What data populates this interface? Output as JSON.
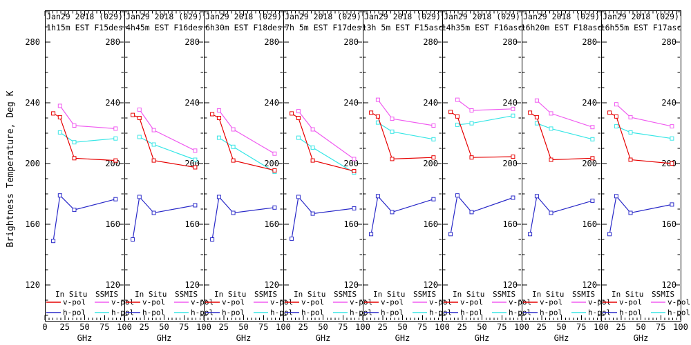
{
  "chart_data": {
    "type": "line",
    "title": "Jan29 2018 (029)",
    "ylabel": "Brightness Temperature, Deg K",
    "xlabel": "GHz",
    "xlim": [
      0,
      100
    ],
    "ylim": [
      96,
      301
    ],
    "x_ticks": [
      0,
      25,
      50,
      75,
      100
    ],
    "y_ticks": [
      120,
      160,
      200,
      240,
      280
    ],
    "x_minor_step": 5,
    "y_minor_step": 10,
    "in_situ_ghz": [
      10.5,
      19,
      37,
      89
    ],
    "ssmis_ghz": [
      19,
      37,
      89
    ],
    "legend_groups": [
      "In Situ",
      "SSMIS"
    ],
    "series": [
      {
        "key": "in_situ_v",
        "group": "In Situ",
        "label": "v-pol",
        "color": "#e60000"
      },
      {
        "key": "in_situ_h",
        "group": "In Situ",
        "label": "h-pol",
        "color": "#2828c8"
      },
      {
        "key": "ssmis_v",
        "group": "SSMIS",
        "label": "v-pol",
        "color": "#f05cf0"
      },
      {
        "key": "ssmis_h",
        "group": "SSMIS",
        "label": "h-pol",
        "color": "#38e6e6"
      }
    ],
    "panels": [
      {
        "id": "1",
        "title": [
          "Jan29 2018 (029)",
          "1h15m EST F15des"
        ],
        "in_situ_v": [
          233,
          230.5,
          203.5,
          202
        ],
        "in_situ_h": [
          149,
          179,
          169.5,
          176.5
        ],
        "ssmis_v": [
          238,
          225,
          223
        ],
        "ssmis_h": [
          220.5,
          214,
          216.5
        ]
      },
      {
        "id": "2",
        "title": [
          "Jan29 2018 (029)",
          "4h45m EST F16des"
        ],
        "in_situ_v": [
          232,
          230,
          202,
          197.5
        ],
        "in_situ_h": [
          150,
          178,
          167.5,
          172.5
        ],
        "ssmis_v": [
          235.5,
          222,
          208.5
        ],
        "ssmis_h": [
          217.5,
          212.5,
          202.5
        ]
      },
      {
        "id": "3",
        "title": [
          "Jan29 2018 (029)",
          "6h30m EST F18des"
        ],
        "in_situ_v": [
          232.5,
          230,
          202,
          195.5
        ],
        "in_situ_h": [
          150,
          178,
          167.5,
          171
        ],
        "ssmis_v": [
          235,
          222.5,
          206.5
        ],
        "ssmis_h": [
          217,
          211,
          194.5
        ]
      },
      {
        "id": "4",
        "title": [
          "Jan29 2018 (029)",
          "7h 5m EST F17des"
        ],
        "in_situ_v": [
          233,
          230,
          202,
          195
        ],
        "in_situ_h": [
          150.5,
          178,
          167,
          170.5
        ],
        "ssmis_v": [
          234.5,
          222.5,
          203
        ],
        "ssmis_h": [
          217,
          210.5,
          194
        ]
      },
      {
        "id": "5",
        "title": [
          "Jan29 2018 (029)",
          "13h 5m EST F15asc"
        ],
        "in_situ_v": [
          233.5,
          231,
          203,
          204
        ],
        "in_situ_h": [
          153.5,
          178.5,
          168,
          176.5
        ],
        "ssmis_v": [
          242,
          229.5,
          225
        ],
        "ssmis_h": [
          227,
          221,
          216
        ]
      },
      {
        "id": "6",
        "title": [
          "Jan29 2018 (029)",
          "14h35m EST F16asc"
        ],
        "in_situ_v": [
          234,
          231,
          204,
          204.5
        ],
        "in_situ_h": [
          153.5,
          179,
          168,
          177.5
        ],
        "ssmis_v": [
          242,
          235,
          236
        ],
        "ssmis_h": [
          225.5,
          226.5,
          231.5
        ]
      },
      {
        "id": "7",
        "title": [
          "Jan29 2018 (029)",
          "16h20m EST F18asc"
        ],
        "in_situ_v": [
          233.5,
          230.5,
          202.5,
          203.5
        ],
        "in_situ_h": [
          153.5,
          178.5,
          167.5,
          175.5
        ],
        "ssmis_v": [
          241.5,
          233,
          224
        ],
        "ssmis_h": [
          226.5,
          223,
          216
        ]
      },
      {
        "id": "8",
        "title": [
          "Jan29 2018 (029)",
          "16h55m EST F17asc"
        ],
        "in_situ_v": [
          233.5,
          231,
          202.5,
          200
        ],
        "in_situ_h": [
          153.5,
          178.5,
          167.5,
          173
        ],
        "ssmis_v": [
          239,
          230.5,
          224.5
        ],
        "ssmis_h": [
          224.5,
          220.5,
          216.5
        ]
      }
    ]
  }
}
